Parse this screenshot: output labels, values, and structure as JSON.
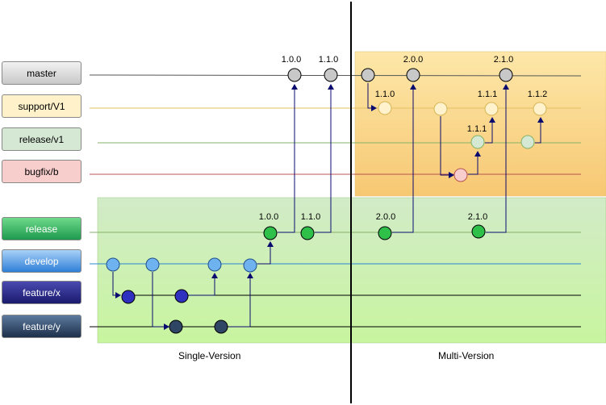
{
  "branches": [
    {
      "id": "master",
      "label": "master",
      "fill": "#c8c8c8",
      "fill2": "#f2f2f2",
      "text": "#000000",
      "line": "#555555"
    },
    {
      "id": "support",
      "label": "support/V1",
      "fill": "#fff1c9",
      "fill2": "#fff1c9",
      "text": "#000000",
      "line": "#e8c855"
    },
    {
      "id": "release_v1",
      "label": "release/v1",
      "fill": "#d5e8d4",
      "fill2": "#d5e8d4",
      "text": "#000000",
      "line": "#82b366"
    },
    {
      "id": "bugfix",
      "label": "bugfix/b",
      "fill": "#f8cecc",
      "fill2": "#f8cecc",
      "text": "#000000",
      "line": "#b85450"
    },
    {
      "id": "release",
      "label": "release",
      "fill": "#1d9a4e",
      "fill2": "#6fd98a",
      "text": "#ffffff",
      "line": "#82b366"
    },
    {
      "id": "develop",
      "label": "develop",
      "fill": "#2f7fd8",
      "fill2": "#a9d1f7",
      "text": "#ffffff",
      "line": "#2a87d0"
    },
    {
      "id": "feature_x",
      "label": "feature/x",
      "fill": "#1a1a6e",
      "fill2": "#4a4ab0",
      "text": "#ffffff",
      "line": "#000000"
    },
    {
      "id": "feature_y",
      "label": "feature/y",
      "fill": "#1e2f4a",
      "fill2": "#5b7a9e",
      "text": "#ffffff",
      "line": "#000000"
    }
  ],
  "sections": {
    "single_version": "Single-Version",
    "multi_version": "Multi-Version"
  },
  "commit_colors": {
    "master": {
      "fill": "#c8c8c8",
      "stroke": "#000000"
    },
    "support": {
      "fill": "#fff2cc",
      "stroke": "#d6b656"
    },
    "release_v1": {
      "fill": "#d5e8d4",
      "stroke": "#82b366"
    },
    "bugfix": {
      "fill": "#f8cecc",
      "stroke": "#b85450"
    },
    "release": {
      "fill": "#2fc04a",
      "stroke": "#000000"
    },
    "develop": {
      "fill": "#6fb2f0",
      "stroke": "#1f4f8a"
    },
    "feature_x": {
      "fill": "#3030c0",
      "stroke": "#000000"
    },
    "feature_y": {
      "fill": "#2e4563",
      "stroke": "#000000"
    }
  },
  "version_labels": [
    "1.0.0",
    "1.1.0",
    "2.0.0",
    "2.1.0",
    "1.1.0",
    "1.1.1",
    "1.1.1",
    "1.1.2",
    "1.0.0",
    "1.1.0",
    "2.0.0",
    "2.1.0"
  ],
  "arrow_color": "#0a0a6e"
}
